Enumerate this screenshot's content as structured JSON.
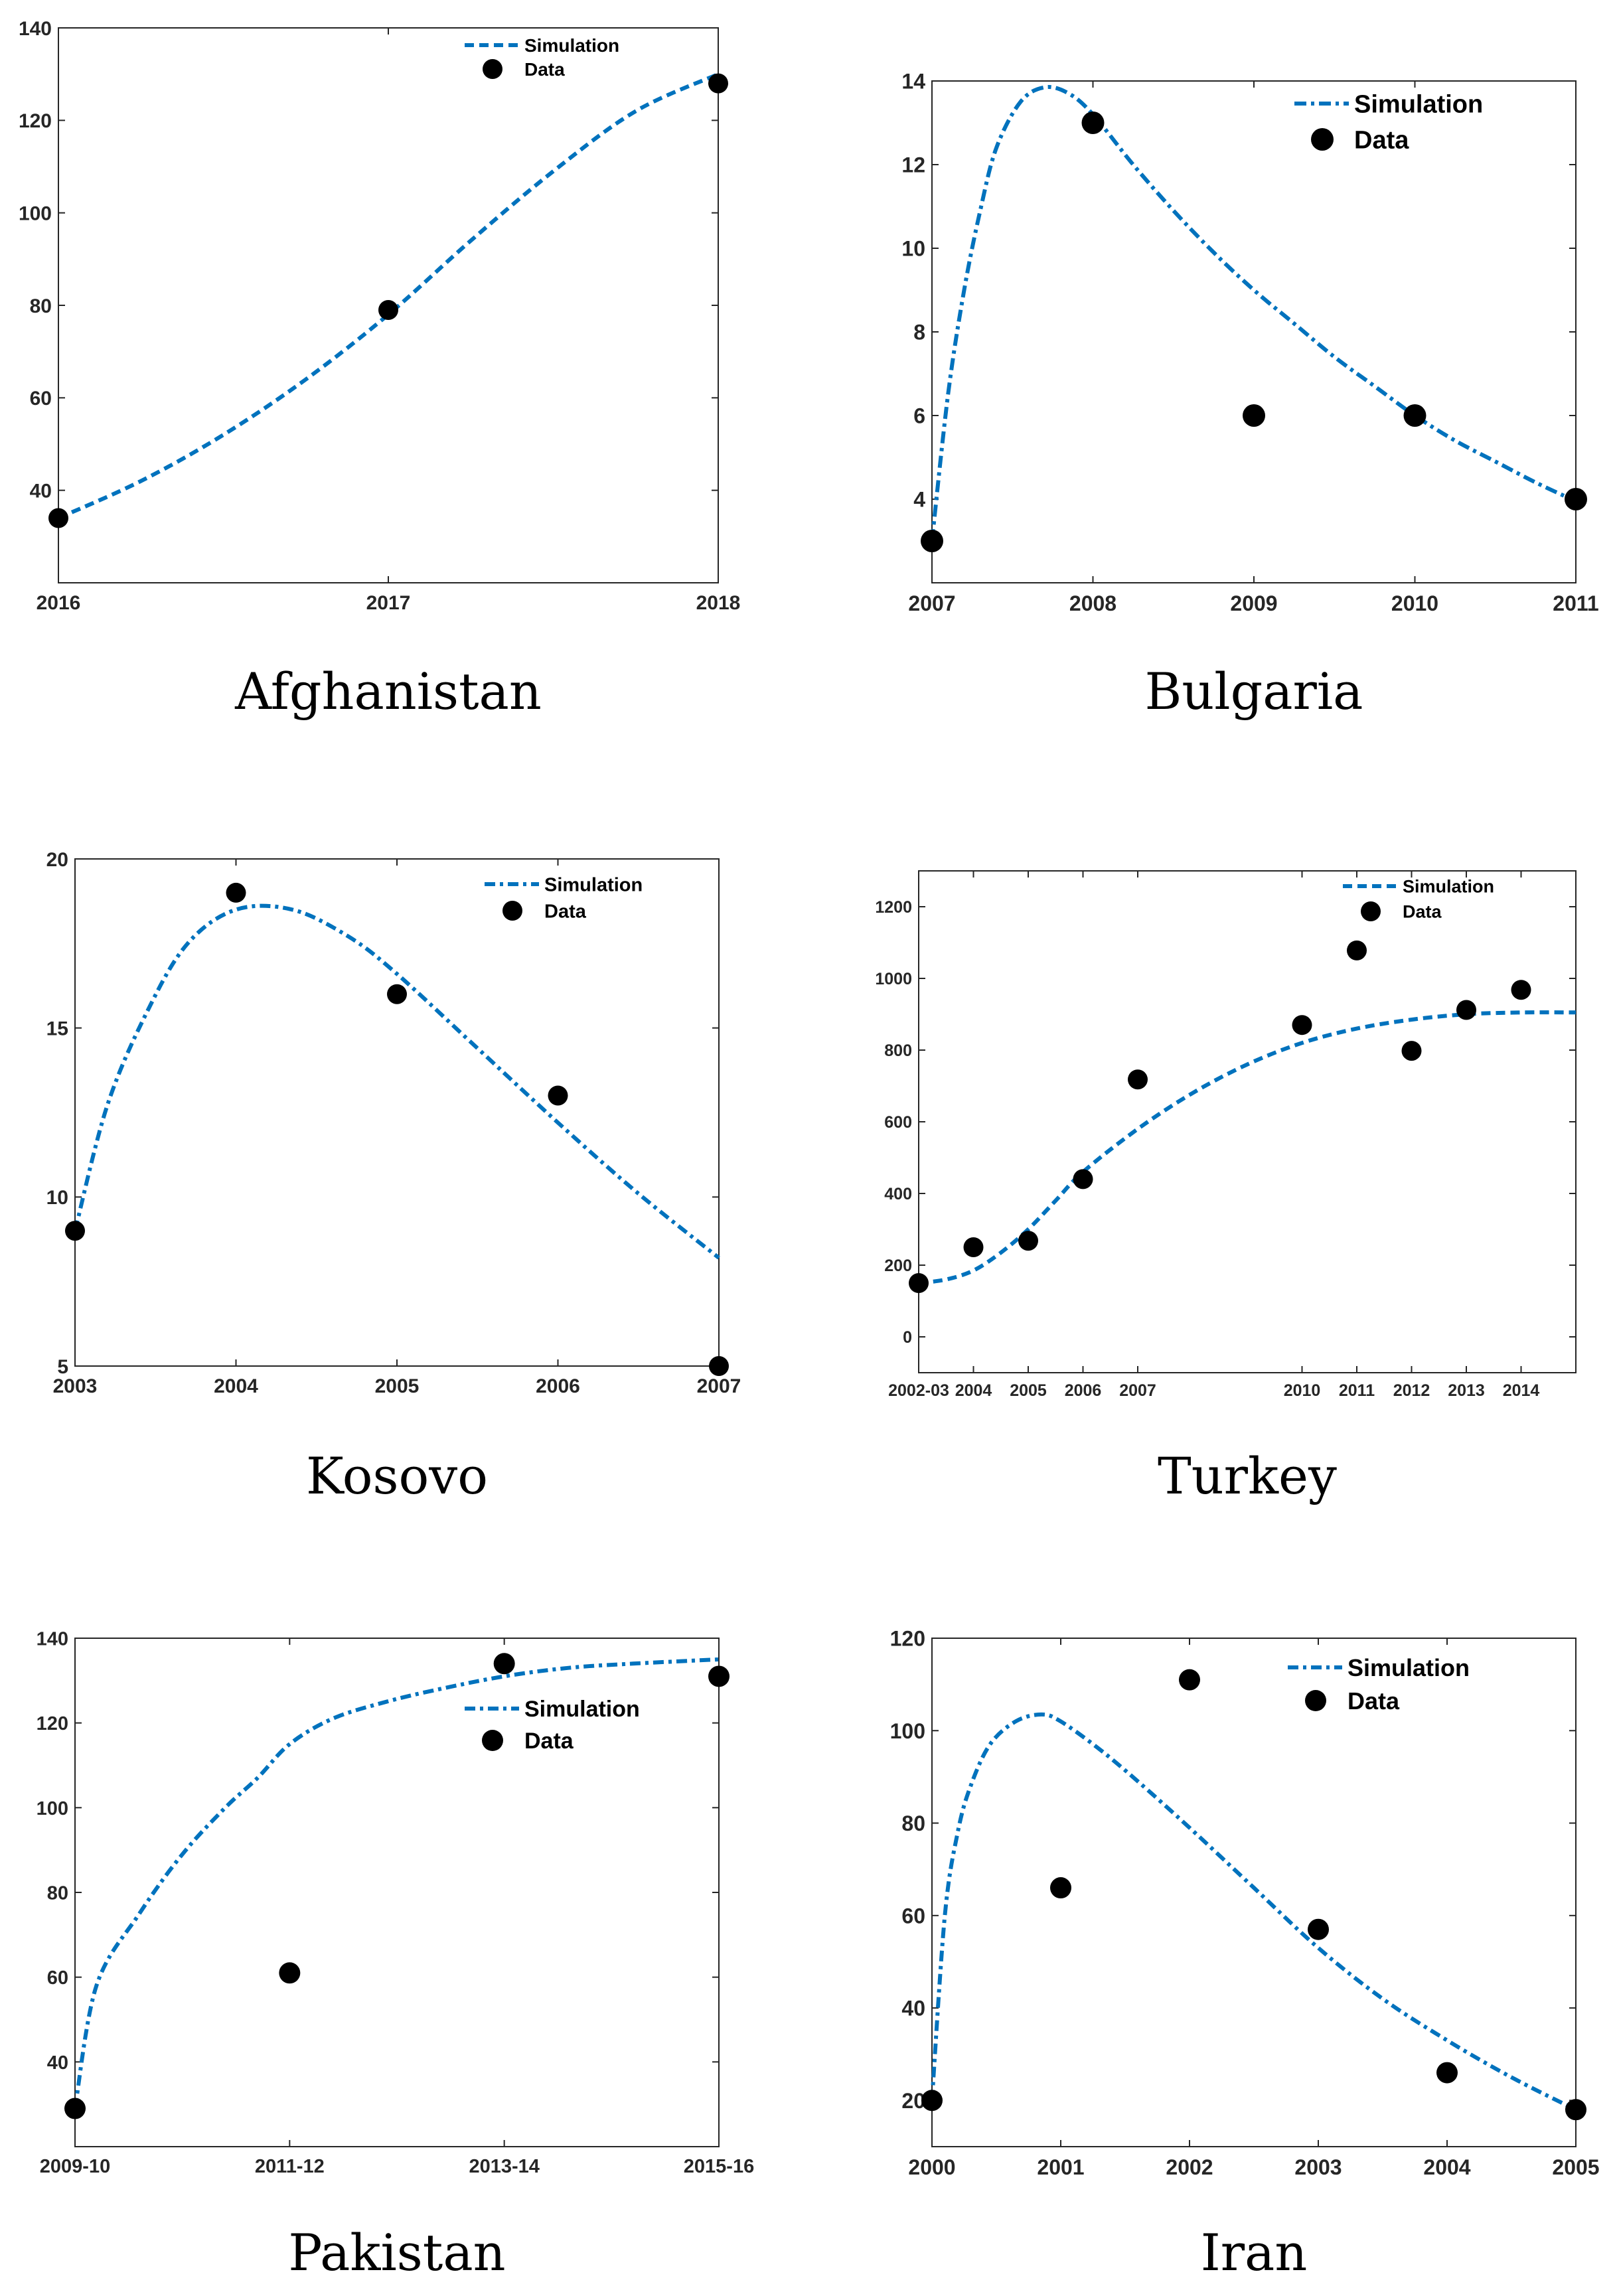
{
  "colors": {
    "simulation": "#0072BD",
    "data": "#000000",
    "axes": "#262626"
  },
  "chart_data": [
    {
      "type": "line",
      "caption": "Afghanistan",
      "x_ticks": [
        {
          "x": 2016,
          "label": "2016"
        },
        {
          "x": 2017,
          "label": "2017"
        },
        {
          "x": 2018,
          "label": "2018"
        }
      ],
      "y_ticks": [
        {
          "y": 40,
          "label": "40"
        },
        {
          "y": 60,
          "label": "60"
        },
        {
          "y": 80,
          "label": "80"
        },
        {
          "y": 100,
          "label": "100"
        },
        {
          "y": 120,
          "label": "120"
        },
        {
          "y": 140,
          "label": "140"
        }
      ],
      "xlim": [
        2016,
        2018
      ],
      "ylim": [
        20,
        140
      ],
      "legend": {
        "position": "top-right",
        "simulation": "Simulation",
        "data": "Data"
      },
      "series": [
        {
          "name": "Simulation",
          "style": "dashed",
          "x": [
            2016,
            2016.25,
            2016.5,
            2016.75,
            2017,
            2017.25,
            2017.5,
            2017.75,
            2018
          ],
          "y": [
            34,
            42,
            52,
            64,
            78,
            94,
            109,
            122,
            130
          ]
        },
        {
          "name": "Data",
          "style": "marker",
          "x": [
            2016,
            2017,
            2018
          ],
          "y": [
            34,
            79,
            128
          ]
        }
      ]
    },
    {
      "type": "line",
      "caption": "Bulgaria",
      "x_ticks": [
        {
          "x": 2007,
          "label": "2007"
        },
        {
          "x": 2008,
          "label": "2008"
        },
        {
          "x": 2009,
          "label": "2009"
        },
        {
          "x": 2010,
          "label": "2010"
        },
        {
          "x": 2011,
          "label": "2011"
        }
      ],
      "y_ticks": [
        {
          "y": 4,
          "label": "4"
        },
        {
          "y": 6,
          "label": "6"
        },
        {
          "y": 8,
          "label": "8"
        },
        {
          "y": 10,
          "label": "10"
        },
        {
          "y": 12,
          "label": "12"
        },
        {
          "y": 14,
          "label": "14"
        }
      ],
      "xlim": [
        2007,
        2011
      ],
      "ylim": [
        2,
        14
      ],
      "legend": {
        "position": "top-right",
        "simulation": "Simulation",
        "data": "Data"
      },
      "series": [
        {
          "name": "Simulation",
          "style": "dashdot",
          "x": [
            2007,
            2007.1,
            2007.2,
            2007.3,
            2007.4,
            2007.55,
            2007.7,
            2007.85,
            2008,
            2008.25,
            2008.5,
            2008.75,
            2009,
            2009.25,
            2009.5,
            2009.75,
            2010,
            2010.25,
            2010.5,
            2010.75,
            2011
          ],
          "y": [
            3,
            6.5,
            9,
            10.9,
            12.4,
            13.5,
            13.85,
            13.7,
            13.2,
            12.0,
            10.9,
            9.9,
            9.0,
            8.2,
            7.4,
            6.7,
            6.0,
            5.4,
            4.9,
            4.4,
            3.95
          ]
        },
        {
          "name": "Data",
          "style": "marker",
          "x": [
            2007,
            2008,
            2009,
            2010,
            2011
          ],
          "y": [
            3,
            13,
            6,
            6,
            4
          ]
        }
      ]
    },
    {
      "type": "line",
      "caption": "Kosovo",
      "x_ticks": [
        {
          "x": 2003,
          "label": "2003"
        },
        {
          "x": 2004,
          "label": "2004"
        },
        {
          "x": 2005,
          "label": "2005"
        },
        {
          "x": 2006,
          "label": "2006"
        },
        {
          "x": 2007,
          "label": "2007"
        }
      ],
      "y_ticks": [
        {
          "y": 5,
          "label": "5"
        },
        {
          "y": 10,
          "label": "10"
        },
        {
          "y": 15,
          "label": "15"
        },
        {
          "y": 20,
          "label": "20"
        }
      ],
      "xlim": [
        2003,
        2007
      ],
      "ylim": [
        5,
        20
      ],
      "legend": {
        "position": "top-right",
        "simulation": "Simulation",
        "data": "Data"
      },
      "series": [
        {
          "name": "Simulation",
          "style": "dashdot",
          "x": [
            2003,
            2003.2,
            2003.45,
            2003.7,
            2004,
            2004.35,
            2004.7,
            2005,
            2005.5,
            2006,
            2006.5,
            2007
          ],
          "y": [
            9,
            12.7,
            15.5,
            17.5,
            18.5,
            18.5,
            17.7,
            16.6,
            14.4,
            12.2,
            10.1,
            8.2
          ]
        },
        {
          "name": "Data",
          "style": "marker",
          "x": [
            2003,
            2004,
            2005,
            2006,
            2007
          ],
          "y": [
            9,
            19,
            16,
            13,
            5
          ]
        }
      ]
    },
    {
      "type": "line",
      "caption": "Turkey",
      "x_ticks": [
        {
          "x": 2003,
          "label": "2002-03"
        },
        {
          "x": 2004,
          "label": "2004"
        },
        {
          "x": 2005,
          "label": "2005"
        },
        {
          "x": 2006,
          "label": "2006"
        },
        {
          "x": 2007,
          "label": "2007"
        },
        {
          "x": 2010,
          "label": "2010"
        },
        {
          "x": 2011,
          "label": "2011"
        },
        {
          "x": 2012,
          "label": "2012"
        },
        {
          "x": 2013,
          "label": "2013"
        },
        {
          "x": 2014,
          "label": "2014"
        }
      ],
      "y_ticks": [
        {
          "y": 0,
          "label": "0"
        },
        {
          "y": 200,
          "label": "200"
        },
        {
          "y": 400,
          "label": "400"
        },
        {
          "y": 600,
          "label": "600"
        },
        {
          "y": 800,
          "label": "800"
        },
        {
          "y": 1000,
          "label": "1000"
        },
        {
          "y": 1200,
          "label": "1200"
        }
      ],
      "xlim": [
        2003,
        2015
      ],
      "ylim": [
        -100,
        1300
      ],
      "legend": {
        "position": "top-right",
        "simulation": "Simulation",
        "data": "Data"
      },
      "series": [
        {
          "name": "Simulation",
          "style": "dashed",
          "x": [
            2003,
            2003.5,
            2004,
            2004.5,
            2005,
            2005.5,
            2006,
            2007,
            2008,
            2009,
            2010,
            2011,
            2012,
            2013,
            2014,
            2015
          ],
          "y": [
            150,
            160,
            185,
            235,
            300,
            380,
            460,
            580,
            680,
            760,
            820,
            860,
            885,
            900,
            905,
            905
          ]
        },
        {
          "name": "Data",
          "style": "marker",
          "x": [
            2003,
            2004,
            2005,
            2006,
            2007,
            2010,
            2011,
            2012,
            2013,
            2014
          ],
          "y": [
            150,
            250,
            268,
            440,
            718,
            870,
            1078,
            798,
            912,
            968
          ]
        }
      ]
    },
    {
      "type": "line",
      "caption": "Pakistan",
      "x_ticks": [
        {
          "x": 0,
          "label": "2009-10"
        },
        {
          "x": 1,
          "label": "2011-12"
        },
        {
          "x": 2,
          "label": "2013-14"
        },
        {
          "x": 3,
          "label": "2015-16"
        }
      ],
      "y_ticks": [
        {
          "y": 40,
          "label": "40"
        },
        {
          "y": 60,
          "label": "60"
        },
        {
          "y": 80,
          "label": "80"
        },
        {
          "y": 100,
          "label": "100"
        },
        {
          "y": 120,
          "label": "120"
        },
        {
          "y": 140,
          "label": "140"
        }
      ],
      "xlim": [
        0,
        3
      ],
      "ylim": [
        20,
        140
      ],
      "legend": {
        "position": "upper-right",
        "simulation": "Simulation",
        "data": "Data"
      },
      "series": [
        {
          "name": "Simulation",
          "style": "dashdot",
          "x": [
            0,
            0.1,
            0.3,
            0.5,
            0.7,
            0.85,
            1,
            1.2,
            1.45,
            1.7,
            2,
            2.3,
            2.6,
            3
          ],
          "y": [
            29,
            58,
            75,
            89,
            100,
            107,
            115,
            121,
            125,
            128,
            131,
            133,
            134,
            135
          ]
        },
        {
          "name": "Data",
          "style": "marker",
          "x": [
            0,
            1,
            2,
            3
          ],
          "y": [
            29,
            61,
            134,
            131
          ]
        }
      ]
    },
    {
      "type": "line",
      "caption": "Iran",
      "x_ticks": [
        {
          "x": 2000,
          "label": "2000"
        },
        {
          "x": 2001,
          "label": "2001"
        },
        {
          "x": 2002,
          "label": "2002"
        },
        {
          "x": 2003,
          "label": "2003"
        },
        {
          "x": 2004,
          "label": "2004"
        },
        {
          "x": 2005,
          "label": "2005"
        }
      ],
      "y_ticks": [
        {
          "y": 20,
          "label": "20"
        },
        {
          "y": 40,
          "label": "40"
        },
        {
          "y": 60,
          "label": "60"
        },
        {
          "y": 80,
          "label": "80"
        },
        {
          "y": 100,
          "label": "100"
        },
        {
          "y": 120,
          "label": "120"
        }
      ],
      "xlim": [
        2000,
        2005
      ],
      "ylim": [
        10,
        120
      ],
      "legend": {
        "position": "top-right",
        "simulation": "Simulation",
        "data": "Data"
      },
      "series": [
        {
          "name": "Simulation",
          "style": "dashdot",
          "x": [
            2000,
            2000.1,
            2000.2,
            2000.3,
            2000.45,
            2000.65,
            2000.85,
            2001,
            2001.3,
            2001.6,
            2002,
            2002.5,
            2003,
            2003.5,
            2004,
            2004.5,
            2005
          ],
          "y": [
            20,
            60,
            78,
            88,
            97,
            102,
            103.5,
            102,
            96,
            89,
            79,
            66,
            53,
            42,
            33,
            25,
            18
          ]
        },
        {
          "name": "Data",
          "style": "marker",
          "x": [
            2000,
            2001,
            2002,
            2003,
            2004,
            2005
          ],
          "y": [
            20,
            66,
            111,
            57,
            26,
            18
          ]
        }
      ]
    }
  ]
}
